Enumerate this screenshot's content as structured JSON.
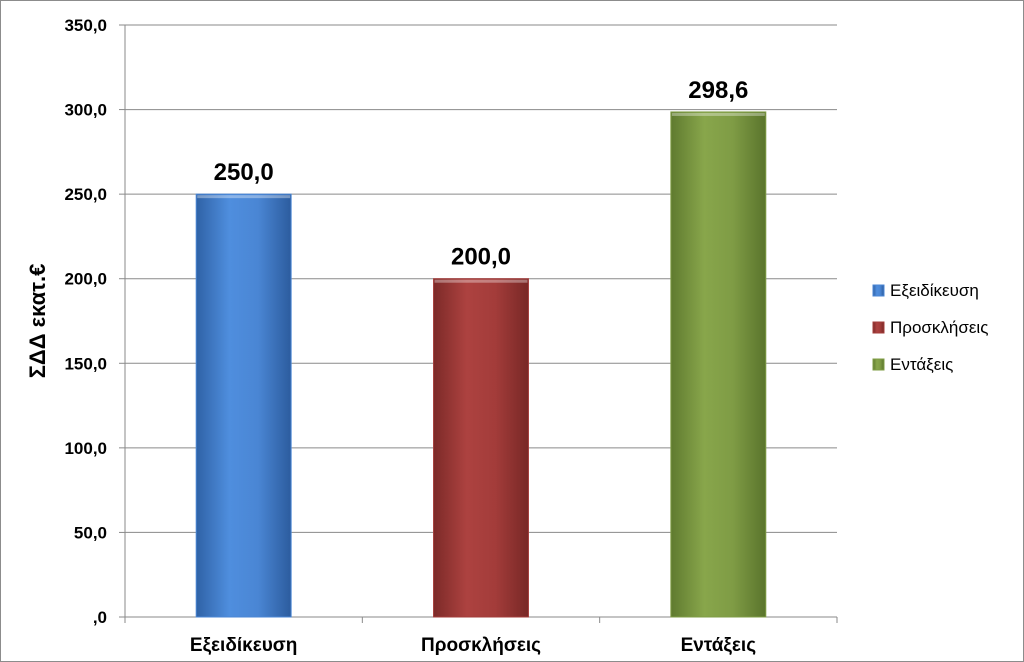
{
  "chart_data": {
    "type": "bar",
    "title": "",
    "xlabel": "",
    "ylabel": "ΣΔΔ εκατ.€",
    "ylim": [
      0,
      350
    ],
    "ytick_step": 50,
    "ytick_labels": [
      ",0",
      "50,0",
      "100,0",
      "150,0",
      "200,0",
      "250,0",
      "300,0",
      "350,0"
    ],
    "categories": [
      "Εξειδίκευση",
      "Προσκλήσεις",
      "Εντάξεις"
    ],
    "values": [
      250.0,
      200.0,
      298.6
    ],
    "data_labels": [
      "250,0",
      "200,0",
      "298,6"
    ],
    "colors": [
      "#4a86d4",
      "#a33c3a",
      "#7f9c45"
    ],
    "grid": true,
    "legend_position": "right",
    "legend": [
      "Εξειδίκευση",
      "Προσκλήσεις",
      "Εντάξεις"
    ]
  }
}
